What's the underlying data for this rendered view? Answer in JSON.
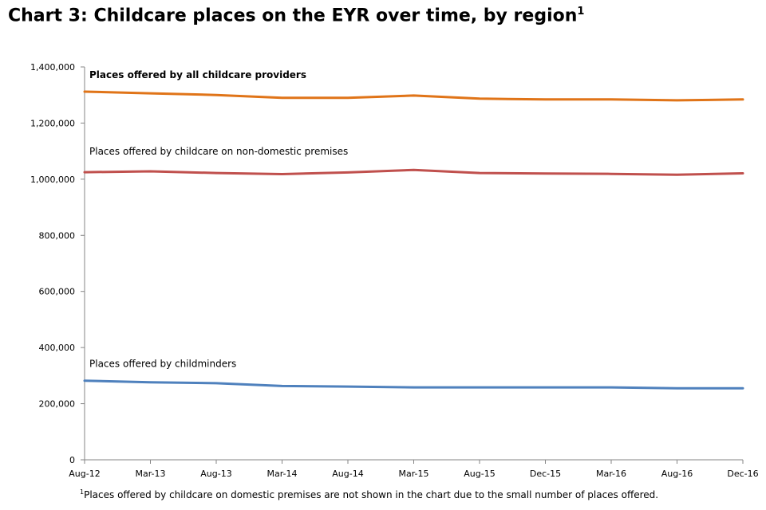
{
  "title": "Chart 3: Childcare places on the EYR over time, by region",
  "title_superscript": "1",
  "footnote_marker": "1",
  "footnote": "Places offered by childcare on domestic premises are not shown in the chart due to the small number of places offered.",
  "chart_data": {
    "type": "line",
    "title": "Chart 3: Childcare places on the EYR over time, by region",
    "categories": [
      "Aug-12",
      "Mar-13",
      "Aug-13",
      "Mar-14",
      "Aug-14",
      "Mar-15",
      "Aug-15",
      "Dec-15",
      "Mar-16",
      "Aug-16",
      "Dec-16"
    ],
    "y_ticks": [
      "0",
      "200,000",
      "400,000",
      "600,000",
      "800,000",
      "1,000,000",
      "1,200,000",
      "1,400,000"
    ],
    "ylim": [
      0,
      1400000
    ],
    "grid": false,
    "legend": "none",
    "series": [
      {
        "name": "Places offered by all childcare providers",
        "color": "#E07418",
        "label_bold": true,
        "values": [
          1312000,
          1306000,
          1300000,
          1290000,
          1290000,
          1298000,
          1287000,
          1284000,
          1284000,
          1281000,
          1284000
        ]
      },
      {
        "name": "Places offered by childcare on non-domestic premises",
        "color": "#C0504D",
        "label_bold": false,
        "values": [
          1025000,
          1028000,
          1022000,
          1018000,
          1024000,
          1033000,
          1022000,
          1020000,
          1019000,
          1016000,
          1021000
        ]
      },
      {
        "name": "Places offered by childminders",
        "color": "#4F81BD",
        "label_bold": false,
        "values": [
          282000,
          276000,
          273000,
          263000,
          261000,
          258000,
          258000,
          258000,
          258000,
          255000,
          255000
        ]
      }
    ]
  }
}
